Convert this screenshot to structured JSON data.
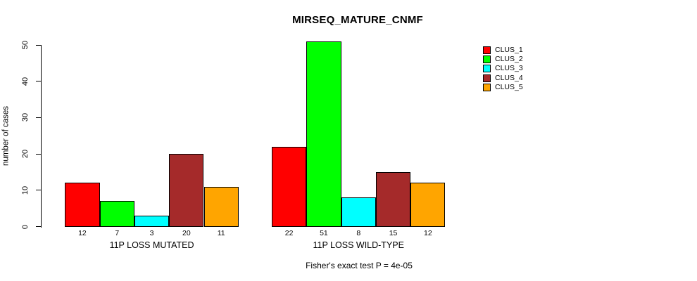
{
  "chart_data": {
    "type": "bar",
    "title": "MIRSEQ_MATURE_CNMF",
    "ylabel": "number of cases",
    "ylim": [
      0,
      50
    ],
    "yticks": [
      0,
      10,
      20,
      30,
      40,
      50
    ],
    "grid": false,
    "legend_position": "right",
    "categories": [
      "11P LOSS MUTATED",
      "11P LOSS WILD-TYPE"
    ],
    "series": [
      {
        "name": "CLUS_1",
        "color": "#FF0000",
        "values": [
          12,
          22
        ]
      },
      {
        "name": "CLUS_2",
        "color": "#00FF00",
        "values": [
          7,
          51
        ]
      },
      {
        "name": "CLUS_3",
        "color": "#00FFFF",
        "values": [
          3,
          8
        ]
      },
      {
        "name": "CLUS_4",
        "color": "#A52A2A",
        "values": [
          20,
          15
        ]
      },
      {
        "name": "CLUS_5",
        "color": "#FFA500",
        "values": [
          11,
          12
        ]
      }
    ],
    "bar_value_labels": {
      "11P LOSS MUTATED": [
        12,
        7,
        3,
        20,
        11
      ],
      "11P LOSS WILD-TYPE": [
        22,
        51,
        8,
        15,
        12
      ]
    },
    "footnote": "Fisher's exact test P = 4e-05",
    "colors": {
      "background": "#FFFFFF",
      "axis": "#000000",
      "text": "#000000"
    }
  }
}
